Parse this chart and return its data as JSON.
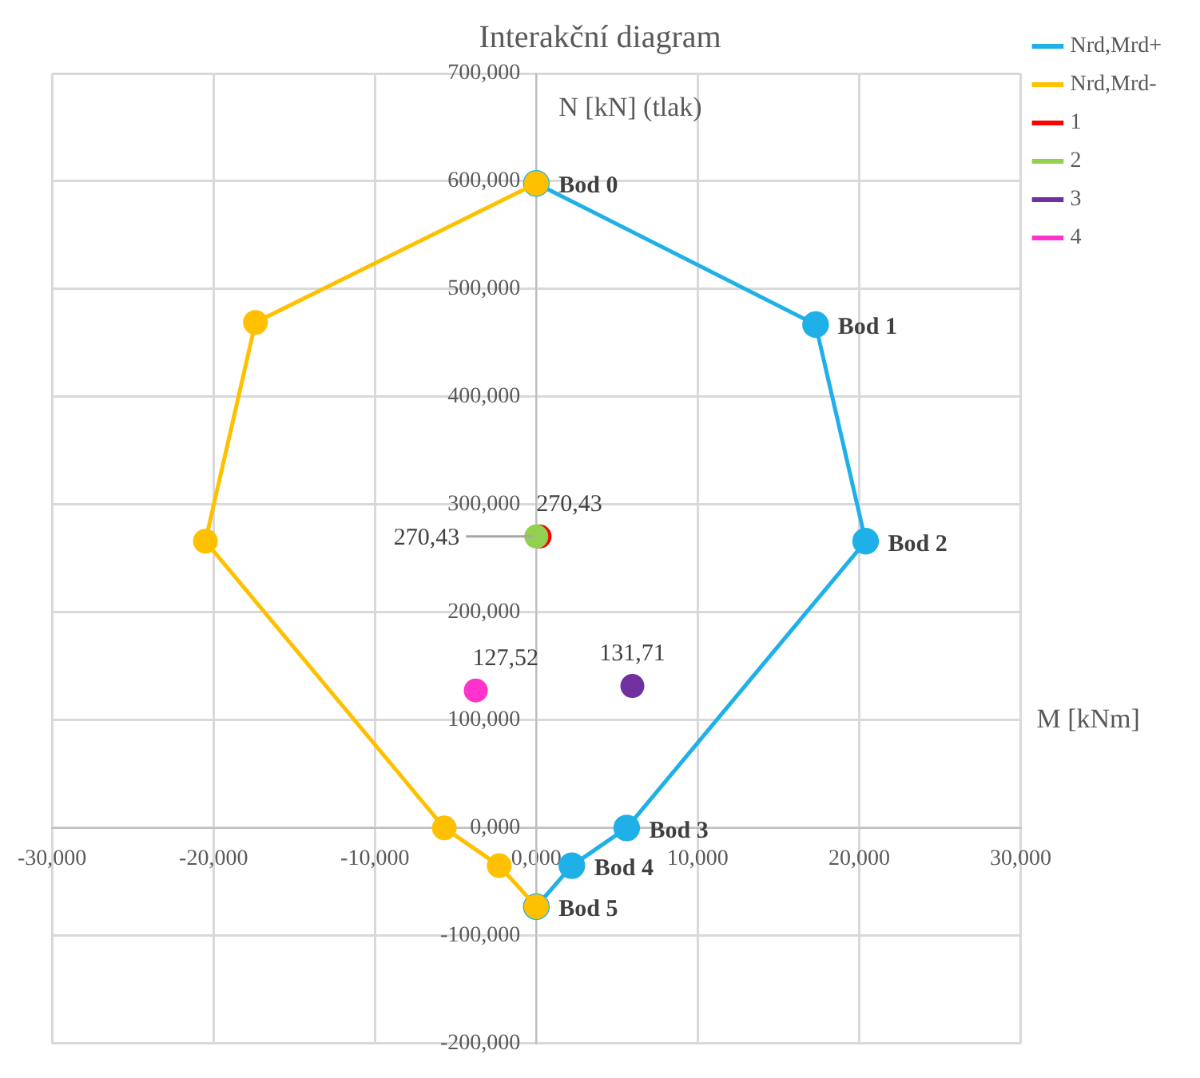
{
  "chart_data": {
    "type": "line",
    "title": "Interakční diagram",
    "xlabel": "M [kNm]",
    "ylabel": "N [kN] (tlak)",
    "xlim": [
      -30,
      30
    ],
    "ylim": [
      -200,
      700
    ],
    "xticks": [
      {
        "value": -30,
        "label": "-30,000"
      },
      {
        "value": -20,
        "label": "-20,000"
      },
      {
        "value": -10,
        "label": "-10,000"
      },
      {
        "value": 0,
        "label": "0,000"
      },
      {
        "value": 10,
        "label": "10,000"
      },
      {
        "value": 20,
        "label": "20,000"
      },
      {
        "value": 30,
        "label": "30,000"
      }
    ],
    "yticks": [
      {
        "value": -200,
        "label": "-200,000"
      },
      {
        "value": -100,
        "label": "-100,000"
      },
      {
        "value": 0,
        "label": "0,000"
      },
      {
        "value": 100,
        "label": "100,000"
      },
      {
        "value": 200,
        "label": "200,000"
      },
      {
        "value": 300,
        "label": "300,000"
      },
      {
        "value": 400,
        "label": "400,000"
      },
      {
        "value": 500,
        "label": "500,000"
      },
      {
        "value": 600,
        "label": "600,000"
      },
      {
        "value": 700,
        "label": "700,000"
      }
    ],
    "grid": true,
    "legend": "right",
    "marker": "circle",
    "line_style": "solid",
    "series": [
      {
        "name": "Nrd,Mrd+",
        "color": "#1fb0e8",
        "x": [
          0,
          17.3,
          20.4,
          5.6,
          2.2,
          0
        ],
        "values": [
          598,
          467,
          266,
          0,
          -35,
          -73
        ],
        "value_labels": [
          "Bod 0",
          "Bod 1",
          "Bod 2",
          "Bod 3",
          "Bod 4",
          "Bod 5"
        ]
      },
      {
        "name": "Nrd,Mrd-",
        "color": "#ffc000",
        "x": [
          0,
          -17.4,
          -20.5,
          -5.7,
          -2.3,
          0
        ],
        "values": [
          598,
          469,
          266,
          0,
          -35,
          -73
        ]
      },
      {
        "name": "1",
        "type": "scatter",
        "color": "#ff0000",
        "x": [
          0.2
        ],
        "values": [
          270.43
        ],
        "value_labels": [
          "270,43"
        ]
      },
      {
        "name": "2",
        "type": "scatter",
        "color": "#92d050",
        "x": [
          0
        ],
        "values": [
          270.43
        ],
        "value_labels": [
          "270,43"
        ]
      },
      {
        "name": "3",
        "type": "scatter",
        "color": "#7030a0",
        "x": [
          5.95
        ],
        "values": [
          131.71
        ],
        "value_labels": [
          "131,71"
        ]
      },
      {
        "name": "4",
        "type": "scatter",
        "color": "#ff33cc",
        "x": [
          -3.75
        ],
        "values": [
          127.52
        ],
        "value_labels": [
          "127,52"
        ]
      }
    ]
  }
}
